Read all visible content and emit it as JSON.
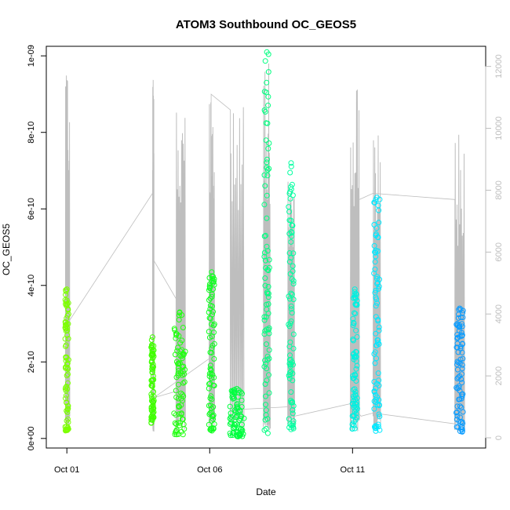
{
  "chart_data": {
    "type": "scatter",
    "title": "ATOM3 Southbound OC_GEOS5",
    "xlabel": "Date",
    "ylabel": "OC_GEOS5",
    "x_unit": "days (fractional) since Oct 01",
    "xlim": [
      -0.72,
      14.66
    ],
    "ylim": [
      -2.5e-11,
      1.025e-09
    ],
    "y2lim": [
      -330,
      12650
    ],
    "x_ticks": [
      {
        "label": "Oct 01",
        "value": 0
      },
      {
        "label": "Oct 06",
        "value": 5
      },
      {
        "label": "Oct 11",
        "value": 10
      }
    ],
    "y_ticks": [
      {
        "label": "0e+00",
        "value": 0
      },
      {
        "label": "2e-10",
        "value": 2e-10
      },
      {
        "label": "4e-10",
        "value": 4e-10
      },
      {
        "label": "6e-10",
        "value": 6e-10
      },
      {
        "label": "8e-10",
        "value": 8e-10
      },
      {
        "label": "1e-09",
        "value": 1e-09
      }
    ],
    "y2_ticks": [
      {
        "label": "0",
        "value": 0
      },
      {
        "label": "2000",
        "value": 2000
      },
      {
        "label": "4000",
        "value": 4000
      },
      {
        "label": "6000",
        "value": 6000
      },
      {
        "label": "8000",
        "value": 8000
      },
      {
        "label": "10000",
        "value": 10000
      },
      {
        "label": "12000",
        "value": 12000
      }
    ],
    "series": [
      {
        "role": "oc",
        "color": "#7cff00",
        "x_center": 0.0,
        "x_spread": 0.06,
        "y_min": 2e-11,
        "y_max": 3.9e-10
      },
      {
        "role": "oc",
        "color": "#40ff00",
        "x_center": 3.0,
        "x_spread": 0.05,
        "y_min": 4e-11,
        "y_max": 2.65e-10
      },
      {
        "role": "oc",
        "color": "#20ff10",
        "x_center": 3.95,
        "x_spread": 0.2,
        "y_min": 1e-11,
        "y_max": 3.3e-10
      },
      {
        "role": "oc",
        "color": "#10ff20",
        "x_center": 5.07,
        "x_spread": 0.1,
        "y_min": 2e-11,
        "y_max": 4.35e-10
      },
      {
        "role": "oc",
        "color": "#00ff40",
        "x_center": 5.95,
        "x_spread": 0.25,
        "y_min": 5e-12,
        "y_max": 1.3e-10
      },
      {
        "role": "oc",
        "color": "#00ff80",
        "x_center": 7.0,
        "x_spread": 0.09,
        "y_min": 1e-11,
        "y_max": 1.01e-09
      },
      {
        "role": "oc",
        "color": "#00ffa0",
        "x_center": 7.85,
        "x_spread": 0.09,
        "y_min": 1.5e-11,
        "y_max": 7.2e-10
      },
      {
        "role": "oc",
        "color": "#00f0e0",
        "x_center": 10.08,
        "x_spread": 0.09,
        "y_min": 2.5e-11,
        "y_max": 3.9e-10
      },
      {
        "role": "oc",
        "color": "#00e8ff",
        "x_center": 10.85,
        "x_spread": 0.1,
        "y_min": 1.5e-11,
        "y_max": 6.3e-10
      },
      {
        "role": "oc",
        "color": "#0a9cff",
        "x_center": 13.75,
        "x_spread": 0.12,
        "y_min": 1.5e-11,
        "y_max": 3.4e-10
      }
    ],
    "altitude_profiles": [
      {
        "x_start": -0.05,
        "x_end": 0.1,
        "y2_max": 11800
      },
      {
        "x_start": 3.0,
        "x_end": 3.05,
        "y2_max": 12200
      },
      {
        "x_start": 3.82,
        "x_end": 4.15,
        "y2_max": 10600
      },
      {
        "x_start": 4.98,
        "x_end": 5.17,
        "y2_max": 12300
      },
      {
        "x_start": 5.72,
        "x_end": 6.2,
        "y2_max": 11100
      },
      {
        "x_start": 6.88,
        "x_end": 7.12,
        "y2_max": 12100
      },
      {
        "x_start": 7.73,
        "x_end": 7.97,
        "y2_max": 9500
      },
      {
        "x_start": 9.92,
        "x_end": 10.24,
        "y2_max": 11600
      },
      {
        "x_start": 10.72,
        "x_end": 10.98,
        "y2_max": 10000
      },
      {
        "x_start": 13.58,
        "x_end": 13.92,
        "y2_max": 9900
      }
    ],
    "altitude_transit": [
      [
        0.03,
        3700
      ],
      [
        3.0,
        7900
      ],
      [
        3.0,
        5800
      ],
      [
        3.82,
        4500
      ],
      [
        3.82,
        1500
      ],
      [
        3.05,
        1300
      ],
      [
        5.05,
        2600
      ],
      [
        5.05,
        11100
      ],
      [
        5.72,
        10600
      ],
      [
        5.72,
        900
      ],
      [
        7.73,
        1000
      ],
      [
        7.73,
        3500
      ],
      [
        7.97,
        700
      ],
      [
        9.92,
        1100
      ],
      [
        10.3,
        700
      ],
      [
        10.72,
        800
      ],
      [
        13.58,
        450
      ],
      [
        13.58,
        7700
      ],
      [
        10.72,
        7900
      ],
      [
        10.24,
        7700
      ]
    ]
  }
}
